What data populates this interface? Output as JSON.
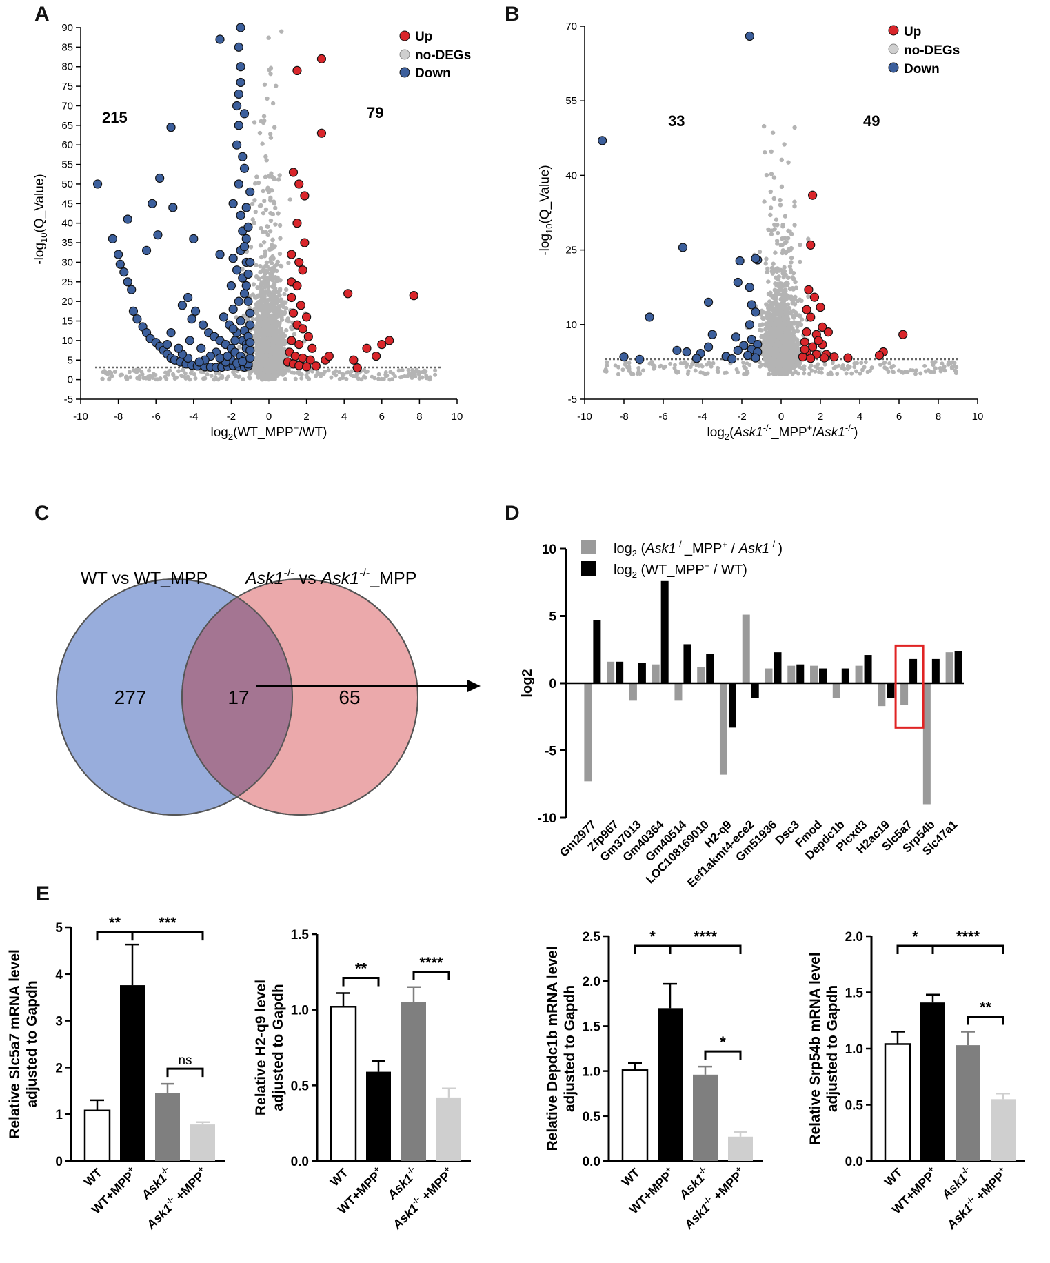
{
  "panels": {
    "A": "A",
    "B": "B",
    "C": "C",
    "D": "D",
    "E": "E"
  },
  "colors": {
    "up": "#d9262b",
    "nodeg": "#b4b4b4",
    "down": "#3c5f9c",
    "black": "#000000",
    "gray_bar": "#9a9a9a",
    "ko_bar": "#7f7f7f",
    "ko_mpp_bar": "#cfcfcf",
    "venn_left": "#8ea6d8",
    "venn_right": "#eaa6a8",
    "venn_overlap": "#a27390",
    "highlight": "#e02424"
  },
  "legend_volcano": {
    "up": "Up",
    "nodeg": "no-DEGs",
    "down": "Down"
  },
  "chart_data": [
    {
      "id": "A",
      "type": "scatter",
      "title": "",
      "xlabel": "log2(WT_MPP+/WT)",
      "ylabel": "-log10(Q_Value)",
      "xlim": [
        -10,
        10
      ],
      "ylim": [
        -5,
        90
      ],
      "xticks": [
        "-10",
        "-8",
        "-6",
        "-4",
        "-2",
        "0",
        "2",
        "4",
        "6",
        "8",
        "10"
      ],
      "yticks": [
        "-5",
        "0",
        "5",
        "10",
        "15",
        "20",
        "25",
        "30",
        "35",
        "40",
        "45",
        "50",
        "55",
        "60",
        "65",
        "70",
        "75",
        "80",
        "85",
        "90"
      ],
      "count_down": "215",
      "count_up": "79",
      "threshold": 3,
      "up_points": [
        [
          1.5,
          79
        ],
        [
          2.8,
          82
        ],
        [
          2.8,
          63
        ],
        [
          1.3,
          53
        ],
        [
          1.6,
          50
        ],
        [
          1.9,
          47
        ],
        [
          1.5,
          40
        ],
        [
          1.9,
          35
        ],
        [
          1.2,
          32
        ],
        [
          1.6,
          30
        ],
        [
          1.8,
          28
        ],
        [
          1.2,
          25
        ],
        [
          1.5,
          24
        ],
        [
          1.2,
          21
        ],
        [
          1.7,
          19
        ],
        [
          1.3,
          17
        ],
        [
          2.0,
          16
        ],
        [
          1.5,
          14
        ],
        [
          1.8,
          13
        ],
        [
          2.1,
          11
        ],
        [
          1.2,
          10
        ],
        [
          1.6,
          9
        ],
        [
          2.3,
          8
        ],
        [
          1.1,
          7
        ],
        [
          1.4,
          6
        ],
        [
          1.8,
          5.5
        ],
        [
          2.2,
          5
        ],
        [
          1.0,
          4.5
        ],
        [
          1.3,
          4
        ],
        [
          1.6,
          3.6
        ],
        [
          2.0,
          3.3
        ],
        [
          2.5,
          3.5
        ],
        [
          3.0,
          5
        ],
        [
          4.2,
          22
        ],
        [
          7.7,
          21.5
        ],
        [
          5.2,
          8
        ],
        [
          6.0,
          9
        ],
        [
          6.4,
          10
        ],
        [
          5.7,
          6
        ],
        [
          4.5,
          5
        ],
        [
          4.7,
          3
        ],
        [
          3.2,
          6
        ]
      ],
      "down_points": [
        [
          -1.5,
          90
        ],
        [
          -2.6,
          87
        ],
        [
          -1.6,
          85
        ],
        [
          -1.5,
          80
        ],
        [
          -1.5,
          76
        ],
        [
          -1.6,
          73
        ],
        [
          -1.7,
          70
        ],
        [
          -1.3,
          68
        ],
        [
          -1.6,
          65
        ],
        [
          -5.2,
          64.5
        ],
        [
          -1.7,
          60
        ],
        [
          -1.4,
          57
        ],
        [
          -1.3,
          54
        ],
        [
          -9.1,
          50
        ],
        [
          -5.8,
          51.5
        ],
        [
          -1.6,
          50
        ],
        [
          -1.9,
          45
        ],
        [
          -1.5,
          42
        ],
        [
          -6.2,
          45
        ],
        [
          -5.1,
          44
        ],
        [
          -7.5,
          41
        ],
        [
          -5.9,
          37
        ],
        [
          -4.0,
          36
        ],
        [
          -8.3,
          36
        ],
        [
          -8.0,
          32
        ],
        [
          -6.5,
          33
        ],
        [
          -7.9,
          29.5
        ],
        [
          -7.7,
          27.5
        ],
        [
          -7.5,
          25
        ],
        [
          -7.3,
          23
        ],
        [
          -1.4,
          38
        ],
        [
          -1.2,
          36
        ],
        [
          -1.5,
          33
        ],
        [
          -2.6,
          32
        ],
        [
          -1.9,
          31
        ],
        [
          -1.2,
          30
        ],
        [
          -1.7,
          28
        ],
        [
          -1.4,
          26
        ],
        [
          -2.0,
          24
        ],
        [
          -1.3,
          22
        ],
        [
          -1.6,
          20
        ],
        [
          -1.9,
          18
        ],
        [
          -4.3,
          21
        ],
        [
          -4.6,
          19
        ],
        [
          -3.9,
          17.5
        ],
        [
          -4.1,
          15.5
        ],
        [
          -7.2,
          17.5
        ],
        [
          -7.0,
          15.5
        ],
        [
          -6.7,
          13.5
        ],
        [
          -6.5,
          12
        ],
        [
          -6.3,
          10.5
        ],
        [
          -6.0,
          9.5
        ],
        [
          -5.8,
          8.5
        ],
        [
          -5.6,
          7.5
        ],
        [
          -5.4,
          6.5
        ],
        [
          -5.2,
          5.5
        ],
        [
          -5.0,
          5
        ],
        [
          -4.7,
          4.5
        ],
        [
          -4.4,
          4
        ],
        [
          -4.1,
          3.7
        ],
        [
          -3.8,
          3.5
        ],
        [
          -3.4,
          3.3
        ],
        [
          -3.1,
          3.2
        ],
        [
          -2.8,
          3.1
        ],
        [
          -2.5,
          3.2
        ],
        [
          -2.2,
          3.4
        ],
        [
          -1.9,
          3.6
        ],
        [
          -1.6,
          3.4
        ],
        [
          -1.3,
          3.2
        ],
        [
          -1.1,
          3.5
        ],
        [
          -3.5,
          14
        ],
        [
          -3.2,
          12
        ],
        [
          -2.9,
          11
        ],
        [
          -2.6,
          10
        ],
        [
          -2.3,
          9
        ],
        [
          -2.0,
          8
        ],
        [
          -1.8,
          7
        ],
        [
          -1.5,
          6
        ],
        [
          -1.3,
          5
        ],
        [
          -1.1,
          4
        ],
        [
          -2.4,
          16
        ],
        [
          -2.1,
          14
        ],
        [
          -1.7,
          12
        ],
        [
          -1.4,
          10
        ],
        [
          -1.2,
          9
        ],
        [
          -2.8,
          7
        ],
        [
          -3.1,
          6
        ],
        [
          -3.4,
          5
        ],
        [
          -3.7,
          4.5
        ],
        [
          -4.3,
          5.5
        ],
        [
          -4.6,
          6.5
        ],
        [
          -4.8,
          8
        ],
        [
          -5.4,
          9
        ],
        [
          -5.2,
          12
        ],
        [
          -4.2,
          10
        ],
        [
          -3.6,
          8
        ],
        [
          -2.0,
          5
        ],
        [
          -1.7,
          4.2
        ],
        [
          -2.3,
          4.5
        ],
        [
          -2.6,
          5.5
        ],
        [
          -1.5,
          15
        ],
        [
          -1.9,
          13
        ],
        [
          -1.3,
          12.5
        ],
        [
          -1.1,
          11
        ],
        [
          -1.8,
          10
        ],
        [
          -1.2,
          8
        ],
        [
          -2.2,
          6
        ],
        [
          -1.4,
          4.6
        ],
        [
          -1.0,
          5.5
        ],
        [
          -1.0,
          7.5
        ],
        [
          -1.0,
          9.5
        ],
        [
          -1.0,
          14
        ],
        [
          -1.0,
          17
        ],
        [
          -1.1,
          20
        ],
        [
          -1.2,
          24
        ],
        [
          -1.1,
          27
        ],
        [
          -1.0,
          30
        ],
        [
          -1.3,
          34
        ],
        [
          -1.1,
          39
        ],
        [
          -1.2,
          44
        ],
        [
          -1.0,
          48
        ]
      ]
    },
    {
      "id": "B",
      "type": "scatter",
      "title": "",
      "xlabel": "log2(Ask1-/-_MPP+/Ask1-/-)",
      "ylabel": "-log10(Q_Value)",
      "xlim": [
        -10,
        10
      ],
      "ylim": [
        -5,
        70
      ],
      "xticks": [
        "-10",
        "-8",
        "-6",
        "-4",
        "-2",
        "0",
        "2",
        "4",
        "6",
        "8",
        "10"
      ],
      "yticks": [
        "-5",
        "10",
        "25",
        "40",
        "55",
        "70"
      ],
      "count_down": "33",
      "count_up": "49",
      "threshold": 3,
      "up_points": [
        [
          1.6,
          36
        ],
        [
          1.5,
          26
        ],
        [
          1.4,
          17
        ],
        [
          1.7,
          15.5
        ],
        [
          1.3,
          13
        ],
        [
          2.0,
          13.5
        ],
        [
          1.5,
          11.5
        ],
        [
          2.1,
          9.5
        ],
        [
          1.3,
          8.5
        ],
        [
          1.8,
          8
        ],
        [
          2.4,
          8.5
        ],
        [
          1.2,
          6.5
        ],
        [
          1.6,
          5.5
        ],
        [
          2.1,
          6
        ],
        [
          1.3,
          4.5
        ],
        [
          1.8,
          4
        ],
        [
          2.3,
          4
        ],
        [
          2.7,
          3.5
        ],
        [
          1.1,
          3.5
        ],
        [
          1.5,
          3.2
        ],
        [
          3.4,
          3.3
        ],
        [
          5.2,
          4.5
        ],
        [
          5.0,
          3.8
        ],
        [
          6.2,
          8
        ],
        [
          2.2,
          3.3
        ],
        [
          1.2,
          5
        ],
        [
          1.9,
          6.8
        ]
      ],
      "down_points": [
        [
          -1.6,
          68
        ],
        [
          -9.1,
          47
        ],
        [
          -5.0,
          25.5
        ],
        [
          -1.2,
          23
        ],
        [
          -2.1,
          22.8
        ],
        [
          -1.3,
          23.3
        ],
        [
          -2.2,
          18.5
        ],
        [
          -1.6,
          17.5
        ],
        [
          -1.5,
          14
        ],
        [
          -3.7,
          14.5
        ],
        [
          -6.7,
          11.5
        ],
        [
          -1.3,
          12.5
        ],
        [
          -1.6,
          10
        ],
        [
          -3.5,
          8
        ],
        [
          -2.3,
          7.5
        ],
        [
          -1.5,
          7
        ],
        [
          -1.9,
          5.8
        ],
        [
          -1.2,
          6
        ],
        [
          -1.5,
          5
        ],
        [
          -1.2,
          4.5
        ],
        [
          -2.2,
          4.8
        ],
        [
          -3.7,
          5.5
        ],
        [
          -4.8,
          4.5
        ],
        [
          -5.3,
          4.8
        ],
        [
          -4.1,
          4.2
        ],
        [
          -2.8,
          3.6
        ],
        [
          -1.7,
          3.8
        ],
        [
          -8.0,
          3.5
        ],
        [
          -7.2,
          3
        ],
        [
          -1.3,
          3.3
        ],
        [
          -2.5,
          3.1
        ],
        [
          -4.3,
          3.2
        ]
      ]
    },
    {
      "id": "D",
      "type": "bar",
      "title": "",
      "ylabel": "log2",
      "ylim": [
        -10,
        10
      ],
      "yticks": [
        "-10",
        "-5",
        "0",
        "5",
        "10"
      ],
      "categories": [
        "Gm2977",
        "Zfp967",
        "Gm37013",
        "Gm40364",
        "Gm40514",
        "LOC108169010",
        "H2-q9",
        "Eef1akmt4-ece2",
        "Gm51936",
        "Dsc3",
        "Fmod",
        "Depdc1b",
        "Plcxd3",
        "H2ac19",
        "Slc5a7",
        "Srp54b",
        "Slc47a1"
      ],
      "series": [
        {
          "name": "log2 (Ask1-/-_MPP+ / Ask1-/-)",
          "values": [
            -7.3,
            1.6,
            -1.3,
            1.4,
            -1.3,
            1.2,
            -6.8,
            5.1,
            1.1,
            1.3,
            1.3,
            -1.1,
            1.3,
            -1.7,
            -1.6,
            -9.0,
            2.3
          ]
        },
        {
          "name": "log2 (WT_MPP+ / WT)",
          "values": [
            4.7,
            1.6,
            1.5,
            7.6,
            2.9,
            2.2,
            -3.3,
            -1.1,
            2.3,
            1.4,
            1.1,
            1.1,
            2.1,
            -1.1,
            1.8,
            1.8,
            2.4
          ]
        }
      ],
      "highlight": "Slc5a7"
    },
    {
      "id": "E1",
      "type": "bar",
      "title": "",
      "ylabel": "Relative Slc5a7 mRNA level adjusted to Gapdh",
      "ylim": [
        0,
        5
      ],
      "yticks": [
        "0",
        "1",
        "2",
        "3",
        "4",
        "5"
      ],
      "categories": [
        "WT",
        "WT+MPP+",
        "Ask1-/-",
        "Ask1-/- +MPP+"
      ],
      "values": [
        1.08,
        3.76,
        1.46,
        0.78
      ],
      "errors": [
        0.22,
        0.87,
        0.19,
        0.05
      ],
      "sig": [
        {
          "a": 0,
          "b": 1,
          "label": "**"
        },
        {
          "a": 1,
          "b": 3,
          "label": "***"
        },
        {
          "a": 2,
          "b": 3,
          "label": "ns"
        }
      ]
    },
    {
      "id": "E2",
      "type": "bar",
      "title": "",
      "ylabel": "Relative H2-q9 level adjusted to Gapdh",
      "ylim": [
        0,
        1.5
      ],
      "yticks": [
        "0.0",
        "0.5",
        "1.0",
        "1.5"
      ],
      "categories": [
        "WT",
        "WT+MPP+",
        "Ask1-/-",
        "Ask1-/- +MPP+"
      ],
      "values": [
        1.02,
        0.59,
        1.05,
        0.42
      ],
      "errors": [
        0.09,
        0.07,
        0.1,
        0.06
      ],
      "sig": [
        {
          "a": 0,
          "b": 1,
          "label": "**"
        },
        {
          "a": 2,
          "b": 3,
          "label": "****"
        }
      ]
    },
    {
      "id": "E3",
      "type": "bar",
      "title": "",
      "ylabel": "Relative Depdc1b mRNA level adjusted to Gapdh",
      "ylim": [
        0,
        2.5
      ],
      "yticks": [
        "0.0",
        "0.5",
        "1.0",
        "1.5",
        "2.0",
        "2.5"
      ],
      "categories": [
        "WT",
        "WT+MPP+",
        "Ask1-/-",
        "Ask1-/- +MPP+"
      ],
      "values": [
        1.01,
        1.7,
        0.96,
        0.27
      ],
      "errors": [
        0.08,
        0.27,
        0.09,
        0.05
      ],
      "sig": [
        {
          "a": 0,
          "b": 1,
          "label": "*"
        },
        {
          "a": 1,
          "b": 3,
          "label": "****"
        },
        {
          "a": 2,
          "b": 3,
          "label": "*"
        }
      ]
    },
    {
      "id": "E4",
      "type": "bar",
      "title": "",
      "ylabel": "Relative Srp54b mRNA level adjusted to Gapdh",
      "ylim": [
        0,
        2.0
      ],
      "yticks": [
        "0.0",
        "0.5",
        "1.0",
        "1.5",
        "2.0"
      ],
      "categories": [
        "WT",
        "WT+MPP+",
        "Ask1-/-",
        "Ask1-/- +MPP+"
      ],
      "values": [
        1.04,
        1.41,
        1.03,
        0.55
      ],
      "errors": [
        0.11,
        0.07,
        0.12,
        0.05
      ],
      "sig": [
        {
          "a": 0,
          "b": 1,
          "label": "*"
        },
        {
          "a": 1,
          "b": 3,
          "label": "****"
        },
        {
          "a": 2,
          "b": 3,
          "label": "**"
        }
      ]
    }
  ],
  "venn": {
    "left_title": "WT vs WT_MPP",
    "right_title_gene": "Ask1",
    "right_title_sup": "-/-",
    "right_title_vs": " vs ",
    "right_title_suffix": "_MPP",
    "left_count": "277",
    "overlap_count": "17",
    "right_count": "65"
  },
  "panel_d_legend": {
    "ko_prefix": "log",
    "ko_sub": "2",
    "ko_open": " (",
    "ko_gene": "Ask1",
    "ko_sup": "-/-",
    "ko_mid": "_MPP",
    "ko_plus": "+",
    "ko_div": " / ",
    "ko_close": ")",
    "wt_prefix": "log",
    "wt_sub": "2",
    "wt_text": " (WT_MPP",
    "wt_plus": "+",
    "wt_end": " / WT)"
  },
  "volcano_axis_labels": {
    "y_pre": "-log",
    "y_sub": "10",
    "y_post": "(Q_Value)",
    "a_x_pre": "log",
    "a_x_sub": "2",
    "a_x_main": "(WT_MPP",
    "a_x_sup": "+",
    "a_x_end": "/WT)",
    "b_x_pre": "log",
    "b_x_sub": "2",
    "b_x_open": "(",
    "b_x_gene": "Ask1",
    "b_x_sup": "-/-",
    "b_x_mid": "_MPP",
    "b_x_plus": "+",
    "b_x_slash": "/",
    "b_x_gene2": "Ask1",
    "b_x_sup2": "-/-",
    "b_x_close": ")"
  },
  "e_xlabels": {
    "wt": "WT",
    "wt_mpp": "WT+MPP",
    "plus": "+",
    "ko_gene": "Ask1",
    "ko_sup": "-/-",
    "ko_mpp_suffix": " +MPP"
  }
}
